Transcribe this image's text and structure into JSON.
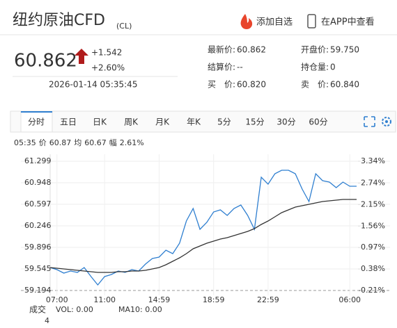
{
  "header": {
    "title": "纽约原油CFD",
    "code": "(CL)",
    "add_watch": "添加自选",
    "app_view": "在APP中查看"
  },
  "quote": {
    "price": "60.862",
    "change": "+1.542",
    "change_pct": "+2.60%",
    "time": "2026-01-14 05:35:45",
    "fields": [
      {
        "label": "最新价:",
        "value": "60.862"
      },
      {
        "label": "开盘价:",
        "value": "59.750"
      },
      {
        "label": "结算价:",
        "value": "--"
      },
      {
        "label": "持仓量:",
        "value": "0"
      },
      {
        "label": "买　价:",
        "value": "60.820"
      },
      {
        "label": "卖　价:",
        "value": "60.840"
      }
    ]
  },
  "tabs": [
    "分时",
    "五日",
    "日K",
    "周K",
    "月K",
    "年K",
    "5分",
    "15分",
    "30分",
    "60分"
  ],
  "info": {
    "time": "05:35",
    "price_label": "价",
    "price": "60.87",
    "avg_label": "均",
    "avg": "60.67",
    "amp_label": "幅",
    "amp": "2.61%"
  },
  "chart_data": {
    "type": "line",
    "categories": [
      null,
      "07:00",
      null,
      null,
      null,
      null,
      null,
      null,
      "11:00",
      null,
      null,
      null,
      null,
      null,
      null,
      null,
      "14:59",
      null,
      null,
      null,
      null,
      null,
      null,
      null,
      "18:59",
      null,
      null,
      null,
      null,
      null,
      null,
      null,
      "22:59",
      null,
      null,
      null,
      null,
      null,
      null,
      null,
      null,
      null,
      null,
      null,
      "06:00",
      null
    ],
    "series": [
      {
        "color": "#2f7fd0",
        "values": [
          59.567,
          59.534,
          59.477,
          59.511,
          59.488,
          59.567,
          59.42,
          59.285,
          59.42,
          59.454,
          59.511,
          59.488,
          59.534,
          59.511,
          59.624,
          59.715,
          59.737,
          59.85,
          59.794,
          59.964,
          60.326,
          60.529,
          60.19,
          60.303,
          60.473,
          60.507,
          60.416,
          60.529,
          60.586,
          60.416,
          60.19,
          61.039,
          60.926,
          61.095,
          61.152,
          61.152,
          61.095,
          60.846,
          60.643,
          61.095,
          60.982,
          60.959,
          60.869,
          60.959,
          60.892,
          60.892
        ]
      },
      {
        "color": "#333333",
        "values": [
          59.567,
          59.556,
          59.545,
          59.534,
          59.522,
          59.511,
          59.5,
          59.488,
          59.488,
          59.488,
          59.5,
          59.5,
          59.511,
          59.511,
          59.522,
          59.545,
          59.567,
          59.613,
          59.669,
          59.726,
          59.794,
          59.873,
          59.918,
          59.964,
          59.997,
          60.031,
          60.054,
          60.088,
          60.122,
          60.156,
          60.201,
          60.269,
          60.326,
          60.394,
          60.462,
          60.507,
          60.552,
          60.575,
          60.597,
          60.62,
          60.643,
          60.654,
          60.665,
          60.677,
          60.677,
          60.677
        ]
      }
    ],
    "ylim": [
      59.194,
      61.299
    ],
    "yticks": [
      59.194,
      59.545,
      59.896,
      60.246,
      60.597,
      60.948,
      61.299
    ],
    "y2lim": [
      -0.21,
      3.34
    ],
    "y2ticks": [
      {
        "value": -0.21,
        "label": "-0.21%"
      },
      {
        "value": 0.38,
        "label": "0.38%"
      },
      {
        "value": 0.97,
        "label": "0.97%"
      },
      {
        "value": 1.56,
        "label": "1.56%"
      },
      {
        "value": 2.15,
        "label": "2.15%"
      },
      {
        "value": 2.74,
        "label": "2.74%"
      },
      {
        "value": 3.34,
        "label": "3.34%"
      }
    ],
    "grid": true
  },
  "volume": {
    "label": "成交",
    "value": "4",
    "vol": "VOL: 0.00",
    "ma10": "MA10: 0.00"
  }
}
